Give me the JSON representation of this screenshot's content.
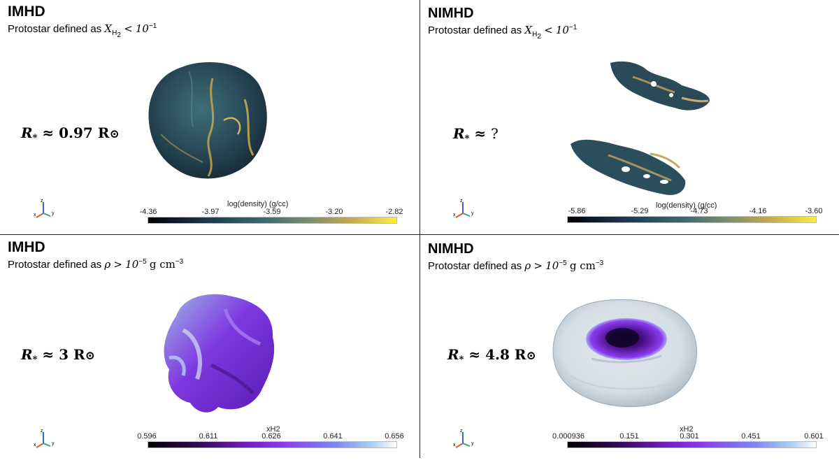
{
  "panels": [
    {
      "id": "top-left",
      "method": "IMHD",
      "criterion_prefix": "Protostar defined as",
      "criterion_math": "X",
      "criterion_sub": "H",
      "criterion_subsub": "2",
      "criterion_rel": "<",
      "criterion_value": "10",
      "criterion_exp": "−1",
      "criterion_unit": "",
      "radius_symbol": "R",
      "radius_sub": "*",
      "radius_rel": "≈",
      "radius_value": "0.97",
      "radius_unit": "R",
      "radius_sun": "⊙",
      "colorbar": {
        "title": "log(density) (g/cc)",
        "ticks": [
          "-4.36",
          "-3.97",
          "-3.59",
          "-3.20",
          "-2.82"
        ],
        "colors": [
          "#000000",
          "#16243a",
          "#22475a",
          "#3f6d6f",
          "#7c8f6d",
          "#c8a94e",
          "#fbef3c"
        ]
      }
    },
    {
      "id": "top-right",
      "method": "NIMHD",
      "criterion_prefix": "Protostar defined as",
      "criterion_math": "X",
      "criterion_sub": "H",
      "criterion_subsub": "2",
      "criterion_rel": "<",
      "criterion_value": "10",
      "criterion_exp": "−1",
      "criterion_unit": "",
      "radius_symbol": "R",
      "radius_sub": "*",
      "radius_rel": "≈",
      "radius_value": "?",
      "radius_unit": "",
      "radius_sun": "",
      "colorbar": {
        "title": "log(density) (g/cc)",
        "ticks": [
          "-5.86",
          "-5.29",
          "-4.73",
          "-4.16",
          "-3.60"
        ],
        "colors": [
          "#000000",
          "#16243a",
          "#22475a",
          "#3f6d6f",
          "#7c8f6d",
          "#c8a94e",
          "#fbef3c"
        ]
      }
    },
    {
      "id": "bottom-left",
      "method": "IMHD",
      "criterion_prefix": "Protostar defined as",
      "criterion_math": "ρ",
      "criterion_rel": ">",
      "criterion_value": "10",
      "criterion_exp": "−5",
      "criterion_unit": "g cm",
      "criterion_unit_exp": "−3",
      "radius_symbol": "R",
      "radius_sub": "*",
      "radius_rel": "≈",
      "radius_value": "3",
      "radius_unit": "R",
      "radius_sun": "⊙",
      "colorbar": {
        "title": "xH2",
        "ticks": [
          "0.596",
          "0.611",
          "0.626",
          "0.641",
          "0.656"
        ],
        "colors": [
          "#000000",
          "#3a0b5e",
          "#7a1fd0",
          "#8b3df0",
          "#7a86f2",
          "#a9d0f2",
          "#ffffff"
        ]
      }
    },
    {
      "id": "bottom-right",
      "method": "NIMHD",
      "criterion_prefix": "Protostar defined as",
      "criterion_math": "ρ",
      "criterion_rel": ">",
      "criterion_value": "10",
      "criterion_exp": "−5",
      "criterion_unit": "g cm",
      "criterion_unit_exp": "−3",
      "radius_symbol": "R",
      "radius_sub": "*",
      "radius_rel": "≈",
      "radius_value": "4.8",
      "radius_unit": "R",
      "radius_sun": "⊙",
      "colorbar": {
        "title": "xH2",
        "ticks": [
          "0.000936",
          "0.151",
          "0.301",
          "0.451",
          "0.601"
        ],
        "colors": [
          "#000000",
          "#3a0b5e",
          "#7a1fd0",
          "#8b3df0",
          "#7a86f2",
          "#a9d0f2",
          "#ffffff"
        ]
      }
    }
  ],
  "axes_labels": {
    "x": "x",
    "y": "y",
    "z": "z"
  },
  "axes_colors": {
    "x": "#e0572a",
    "y": "#2fae6a",
    "z": "#3b62d6"
  }
}
